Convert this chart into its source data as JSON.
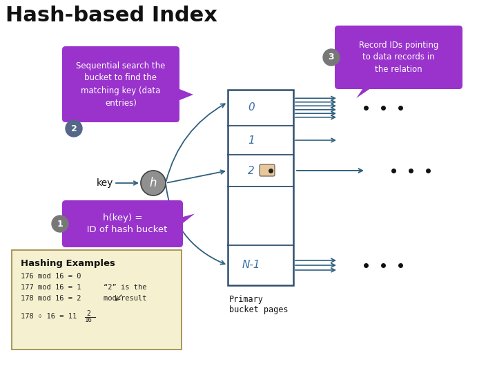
{
  "title": "Hash-based Index",
  "title_fontsize": 22,
  "bg_color": "#ffffff",
  "bucket_color": "#ffffff",
  "bucket_border": "#2f4f6f",
  "bucket_label_color": "#3a6ea5",
  "arrow_color": "#2f5f7f",
  "hash_circle_color": "#909090",
  "hash_circle_text": "h",
  "key_text": "key",
  "callout2_text": "Sequential search the\nbucket to find the\nmatching key (data\nentries)",
  "callout2_color": "#9933cc",
  "callout1_text": "h(key) =\n   ID of hash bucket",
  "callout1_color": "#9933cc",
  "callout3_text": "Record IDs pointing\nto data records in\nthe relation",
  "callout3_color": "#9933cc",
  "hashing_box_bg": "#f5f0d0",
  "hashing_box_border": "#a09050",
  "hashing_title": "Hashing Examples",
  "dot_color": "#111111",
  "badge_gray": "#777777",
  "badge_darkblue": "#556688"
}
